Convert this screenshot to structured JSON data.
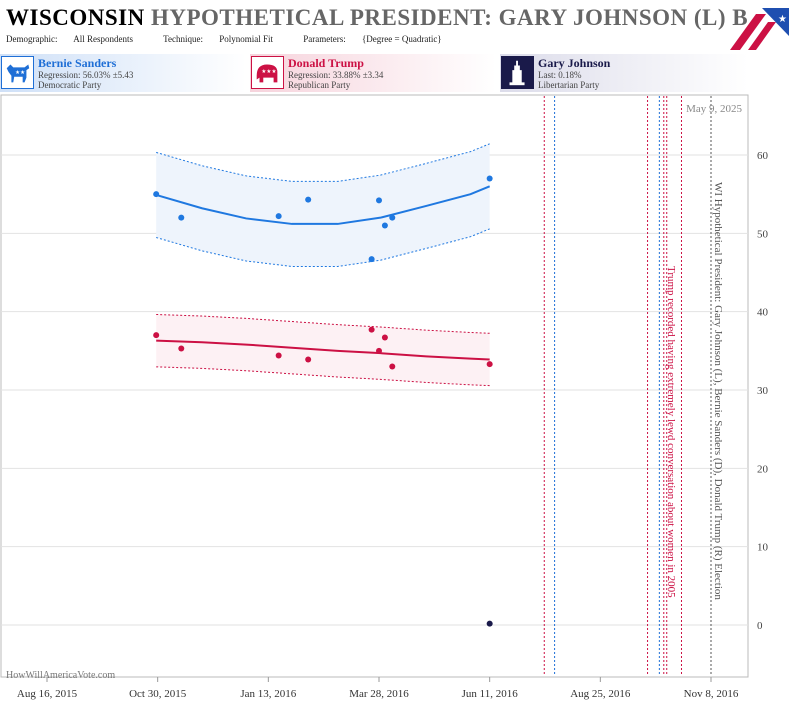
{
  "header": {
    "state": "WISCONSIN",
    "title_rest": "HYPOTHETICAL PRESIDENT: GARY JOHNSON (L) B",
    "meta": [
      {
        "label": "Demographic:",
        "value": "All Respondents"
      },
      {
        "label": "Technique:",
        "value": "Polynomial Fit"
      },
      {
        "label": "Parameters:",
        "value": "{Degree = Quadratic}"
      }
    ],
    "logo_icon": "american-flag-logo"
  },
  "candidates": {
    "dem": {
      "name": "Bernie Sanders",
      "line2": "Regression: 56.03% ±5.43",
      "line3": "Democratic Party",
      "icon": "donkey-icon",
      "color": "#1f6fd6"
    },
    "rep": {
      "name": "Donald Trump",
      "line2": "Regression: 33.88% ±3.34",
      "line3": "Republican Party",
      "icon": "elephant-icon",
      "color": "#cc1144"
    },
    "lib": {
      "name": "Gary Johnson",
      "line2": "Last: 0.18%",
      "line3": "Libertarian Party",
      "icon": "statue-of-liberty-icon",
      "color": "#1a1a4a"
    }
  },
  "watermark": "HowWillAmericaVote.com",
  "chart_data": {
    "type": "scatter",
    "date_label": "May 9, 2025",
    "x_ticks": [
      "Aug 16, 2015",
      "Oct 30, 2015",
      "Jan 13, 2016",
      "Mar 28, 2016",
      "Jun 11, 2016",
      "Aug 25, 2016",
      "Nov 8, 2016"
    ],
    "y_ticks": [
      0,
      10,
      20,
      30,
      40,
      50,
      60
    ],
    "ylim": [
      -5,
      67
    ],
    "right_label": "WI Hypothetical President: Gary Johnson (L), Bernie Sanders (D), Donald Trump (R) Election",
    "annotation": "Trump recorded having extremely lewd conversation about women in 2005",
    "series": [
      {
        "name": "Bernie Sanders",
        "color": "#1f78e0",
        "points": [
          [
            "2015-10-29",
            55.0
          ],
          [
            "2015-11-15",
            52.0
          ],
          [
            "2016-01-20",
            52.2
          ],
          [
            "2016-02-09",
            54.3
          ],
          [
            "2016-03-23",
            46.7
          ],
          [
            "2016-03-28",
            54.2
          ],
          [
            "2016-04-01",
            51.0
          ],
          [
            "2016-04-06",
            52.0
          ],
          [
            "2016-06-11",
            57.0
          ]
        ],
        "fit": [
          [
            "2015-10-29",
            54.9
          ],
          [
            "2015-11-29",
            53.2
          ],
          [
            "2015-12-29",
            51.9
          ],
          [
            "2016-01-29",
            51.2
          ],
          [
            "2016-02-29",
            51.2
          ],
          [
            "2016-03-29",
            52.0
          ],
          [
            "2016-04-29",
            53.5
          ],
          [
            "2016-05-29",
            55.0
          ],
          [
            "2016-06-11",
            56.0
          ]
        ],
        "band": 5.43
      },
      {
        "name": "Donald Trump",
        "color": "#cc1144",
        "points": [
          [
            "2015-10-29",
            37.0
          ],
          [
            "2015-11-15",
            35.3
          ],
          [
            "2016-01-20",
            34.4
          ],
          [
            "2016-02-09",
            33.9
          ],
          [
            "2016-03-23",
            37.7
          ],
          [
            "2016-03-28",
            35.0
          ],
          [
            "2016-04-01",
            36.7
          ],
          [
            "2016-04-06",
            33.0
          ],
          [
            "2016-06-11",
            33.3
          ]
        ],
        "fit": [
          [
            "2015-10-29",
            36.3
          ],
          [
            "2015-11-29",
            36.1
          ],
          [
            "2015-12-29",
            35.8
          ],
          [
            "2016-01-29",
            35.4
          ],
          [
            "2016-02-29",
            35.0
          ],
          [
            "2016-03-29",
            34.7
          ],
          [
            "2016-04-29",
            34.3
          ],
          [
            "2016-05-29",
            34.0
          ],
          [
            "2016-06-11",
            33.9
          ]
        ],
        "band": 3.34
      },
      {
        "name": "Gary Johnson",
        "color": "#1a1a4a",
        "points": [
          [
            "2016-06-11",
            0.18
          ]
        ]
      }
    ],
    "event_lines": [
      {
        "date": "2016-07-18",
        "color": "#cc1144"
      },
      {
        "date": "2016-07-25",
        "color": "#1f6fd6"
      },
      {
        "date": "2016-09-26",
        "color": "#cc1144"
      },
      {
        "date": "2016-10-04",
        "color": "#1f6fd6"
      },
      {
        "date": "2016-10-07",
        "color": "#cc1144"
      },
      {
        "date": "2016-10-09",
        "color": "#cc1144"
      },
      {
        "date": "2016-10-19",
        "color": "#cc1144"
      },
      {
        "date": "2016-11-08",
        "color": "#555555"
      }
    ]
  }
}
